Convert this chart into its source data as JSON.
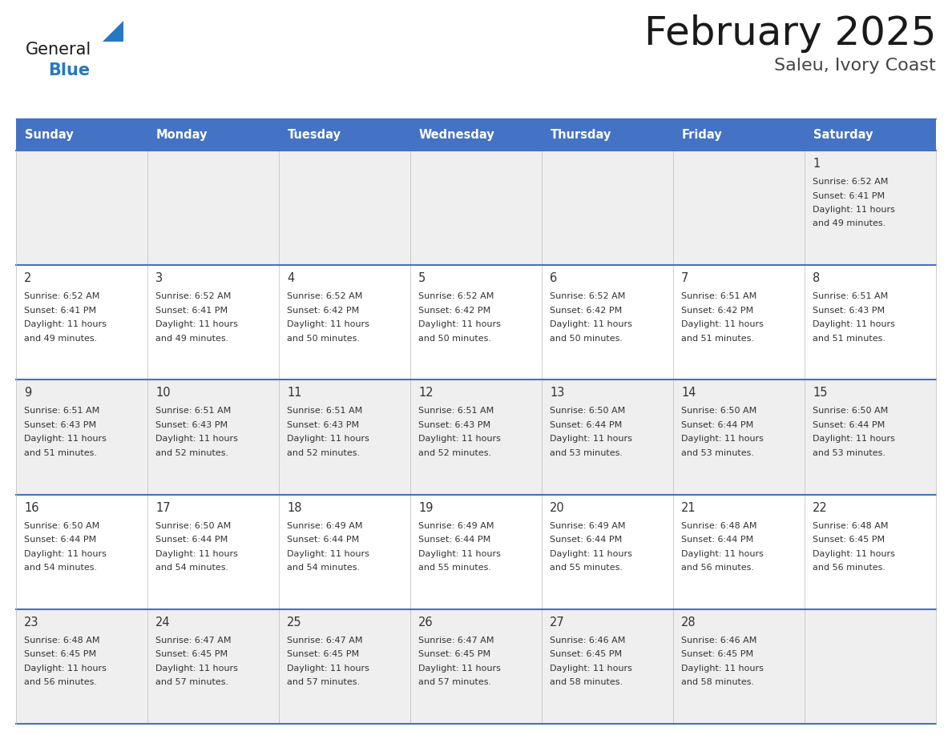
{
  "title": "February 2025",
  "subtitle": "Saleu, Ivory Coast",
  "header_bg": "#4472C4",
  "header_text_color": "#FFFFFF",
  "header_days": [
    "Sunday",
    "Monday",
    "Tuesday",
    "Wednesday",
    "Thursday",
    "Friday",
    "Saturday"
  ],
  "cell_bg_even": "#EFEFEF",
  "cell_bg_odd": "#FFFFFF",
  "cell_border_top_color": "#4472C4",
  "day_text_color": "#333333",
  "info_text_color": "#333333",
  "title_color": "#1a1a1a",
  "subtitle_color": "#444444",
  "logo_general_color": "#1a1a1a",
  "logo_blue_color": "#2778C2",
  "calendar_data": [
    [
      null,
      null,
      null,
      null,
      null,
      null,
      1
    ],
    [
      2,
      3,
      4,
      5,
      6,
      7,
      8
    ],
    [
      9,
      10,
      11,
      12,
      13,
      14,
      15
    ],
    [
      16,
      17,
      18,
      19,
      20,
      21,
      22
    ],
    [
      23,
      24,
      25,
      26,
      27,
      28,
      null
    ]
  ],
  "sunrise_data": {
    "1": "6:52 AM",
    "2": "6:52 AM",
    "3": "6:52 AM",
    "4": "6:52 AM",
    "5": "6:52 AM",
    "6": "6:52 AM",
    "7": "6:51 AM",
    "8": "6:51 AM",
    "9": "6:51 AM",
    "10": "6:51 AM",
    "11": "6:51 AM",
    "12": "6:51 AM",
    "13": "6:50 AM",
    "14": "6:50 AM",
    "15": "6:50 AM",
    "16": "6:50 AM",
    "17": "6:50 AM",
    "18": "6:49 AM",
    "19": "6:49 AM",
    "20": "6:49 AM",
    "21": "6:48 AM",
    "22": "6:48 AM",
    "23": "6:48 AM",
    "24": "6:47 AM",
    "25": "6:47 AM",
    "26": "6:47 AM",
    "27": "6:46 AM",
    "28": "6:46 AM"
  },
  "sunset_data": {
    "1": "6:41 PM",
    "2": "6:41 PM",
    "3": "6:41 PM",
    "4": "6:42 PM",
    "5": "6:42 PM",
    "6": "6:42 PM",
    "7": "6:42 PM",
    "8": "6:43 PM",
    "9": "6:43 PM",
    "10": "6:43 PM",
    "11": "6:43 PM",
    "12": "6:43 PM",
    "13": "6:44 PM",
    "14": "6:44 PM",
    "15": "6:44 PM",
    "16": "6:44 PM",
    "17": "6:44 PM",
    "18": "6:44 PM",
    "19": "6:44 PM",
    "20": "6:44 PM",
    "21": "6:44 PM",
    "22": "6:45 PM",
    "23": "6:45 PM",
    "24": "6:45 PM",
    "25": "6:45 PM",
    "26": "6:45 PM",
    "27": "6:45 PM",
    "28": "6:45 PM"
  },
  "daylight_line1": {
    "1": "Daylight: 11 hours",
    "2": "Daylight: 11 hours",
    "3": "Daylight: 11 hours",
    "4": "Daylight: 11 hours",
    "5": "Daylight: 11 hours",
    "6": "Daylight: 11 hours",
    "7": "Daylight: 11 hours",
    "8": "Daylight: 11 hours",
    "9": "Daylight: 11 hours",
    "10": "Daylight: 11 hours",
    "11": "Daylight: 11 hours",
    "12": "Daylight: 11 hours",
    "13": "Daylight: 11 hours",
    "14": "Daylight: 11 hours",
    "15": "Daylight: 11 hours",
    "16": "Daylight: 11 hours",
    "17": "Daylight: 11 hours",
    "18": "Daylight: 11 hours",
    "19": "Daylight: 11 hours",
    "20": "Daylight: 11 hours",
    "21": "Daylight: 11 hours",
    "22": "Daylight: 11 hours",
    "23": "Daylight: 11 hours",
    "24": "Daylight: 11 hours",
    "25": "Daylight: 11 hours",
    "26": "Daylight: 11 hours",
    "27": "Daylight: 11 hours",
    "28": "Daylight: 11 hours"
  },
  "daylight_line2": {
    "1": "and 49 minutes.",
    "2": "and 49 minutes.",
    "3": "and 49 minutes.",
    "4": "and 50 minutes.",
    "5": "and 50 minutes.",
    "6": "and 50 minutes.",
    "7": "and 51 minutes.",
    "8": "and 51 minutes.",
    "9": "and 51 minutes.",
    "10": "and 52 minutes.",
    "11": "and 52 minutes.",
    "12": "and 52 minutes.",
    "13": "and 53 minutes.",
    "14": "and 53 minutes.",
    "15": "and 53 minutes.",
    "16": "and 54 minutes.",
    "17": "and 54 minutes.",
    "18": "and 54 minutes.",
    "19": "and 55 minutes.",
    "20": "and 55 minutes.",
    "21": "and 56 minutes.",
    "22": "and 56 minutes.",
    "23": "and 56 minutes.",
    "24": "and 57 minutes.",
    "25": "and 57 minutes.",
    "26": "and 57 minutes.",
    "27": "and 58 minutes.",
    "28": "and 58 minutes."
  }
}
